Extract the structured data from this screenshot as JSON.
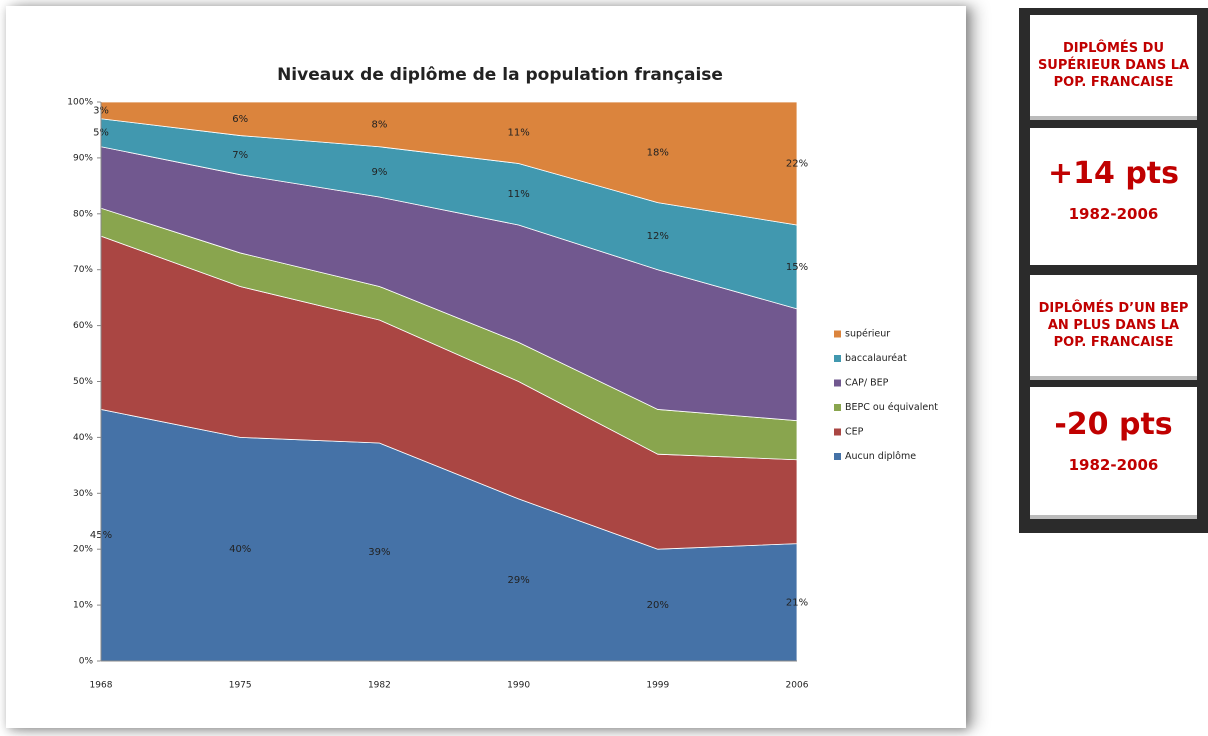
{
  "chart_data": {
    "type": "stacked_area",
    "title": "Niveaux de diplôme de la population française",
    "categories": [
      "1968",
      "1975",
      "1982",
      "1990",
      "1999",
      "2006"
    ],
    "series": [
      {
        "name": "Aucun diplôme",
        "color": "#4572a7",
        "values": [
          45,
          40,
          39,
          29,
          20,
          21
        ],
        "value_labels": [
          "45%",
          "40%",
          "39%",
          "29%",
          "20%",
          "21%"
        ]
      },
      {
        "name": "CEP",
        "color": "#aa4643",
        "values": [
          31,
          27,
          22,
          21,
          17,
          15
        ]
      },
      {
        "name": "BEPC ou équivalent",
        "color": "#89a54e",
        "values": [
          5,
          6,
          6,
          7,
          8,
          7
        ]
      },
      {
        "name": "CAP/ BEP",
        "color": "#71588f",
        "values": [
          11,
          14,
          16,
          21,
          25,
          20
        ]
      },
      {
        "name": "baccalauréat",
        "color": "#4198af",
        "values": [
          5,
          7,
          9,
          11,
          12,
          15
        ],
        "value_labels": [
          "5%",
          "7%",
          "9%",
          "11%",
          "12%",
          "15%"
        ]
      },
      {
        "name": "supérieur",
        "color": "#db843d",
        "values": [
          3,
          6,
          8,
          11,
          18,
          22
        ],
        "value_labels": [
          "3%",
          "6%",
          "8%",
          "11%",
          "18%",
          "22%"
        ]
      }
    ],
    "ylim": [
      0,
      100
    ],
    "yticks": [
      {
        "value": 0,
        "label": "0%"
      },
      {
        "value": 10,
        "label": "10%"
      },
      {
        "value": 20,
        "label": "20%"
      },
      {
        "value": 30,
        "label": "30%"
      },
      {
        "value": 40,
        "label": "40%"
      },
      {
        "value": 50,
        "label": "50%"
      },
      {
        "value": 60,
        "label": "60%"
      },
      {
        "value": 70,
        "label": "70%"
      },
      {
        "value": 80,
        "label": "80%"
      },
      {
        "value": 90,
        "label": "90%"
      },
      {
        "value": 100,
        "label": "100%"
      }
    ],
    "legend": "right"
  },
  "panels": [
    {
      "heading": "DIPLÔMÉS DU SUPÉRIEUR DANS LA POP. FRANCAISE",
      "figure": "+14 pts",
      "period": "1982-2006"
    },
    {
      "heading": "DIPLÔMÉS D’UN BEP AN PLUS DANS LA POP. FRANCAISE",
      "figure": "-20 pts",
      "period": "1982-2006"
    }
  ]
}
